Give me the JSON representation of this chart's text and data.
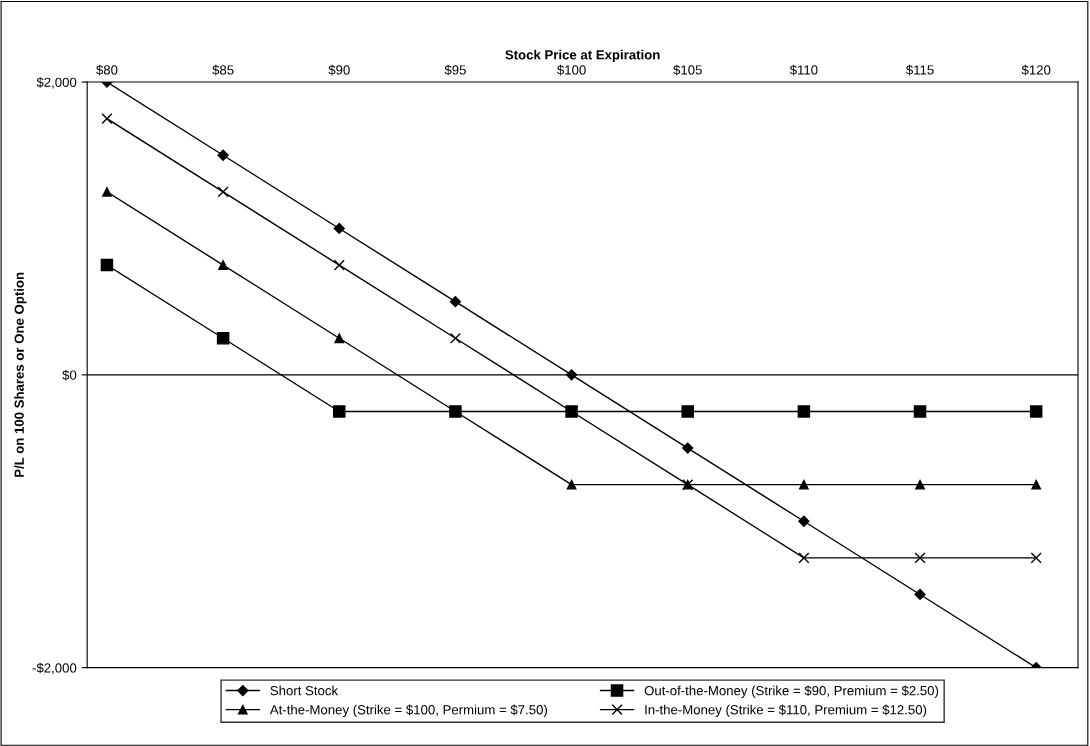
{
  "chart_data": {
    "type": "line",
    "xlabel": "Stock Price at Expiration",
    "ylabel": "P/L on 100 Shares or One Option",
    "categories": [
      "$80",
      "$85",
      "$90",
      "$95",
      "$100",
      "$105",
      "$110",
      "$115",
      "$120"
    ],
    "series": [
      {
        "name": "Short Stock",
        "color": "#000000",
        "marker": "diamond",
        "values": [
          2000,
          1500,
          1000,
          500,
          0,
          -500,
          -1000,
          -1500,
          -2000
        ]
      },
      {
        "name": "Out-of-the-Money (Strike = $90, Premium = $2.50)",
        "color": "#000000",
        "marker": "square",
        "values": [
          750,
          250,
          -250,
          -250,
          -250,
          -250,
          -250,
          -250,
          -250
        ]
      },
      {
        "name": "At-the-Money (Strike = $100, Permium = $7.50)",
        "color": "#000000",
        "marker": "triangle",
        "values": [
          1250,
          750,
          250,
          -250,
          -750,
          -750,
          -750,
          -750,
          -750
        ]
      },
      {
        "name": "In-the-Money (Strike = $110, Premium = $12.50)",
        "color": "#000000",
        "marker": "cross",
        "values": [
          1750,
          1250,
          750,
          250,
          -250,
          -750,
          -1250,
          -1250,
          -1250
        ]
      }
    ],
    "ylim": [
      -2000,
      2000
    ],
    "yticks": [
      {
        "value": -2000,
        "label": "-$2,000"
      },
      {
        "value": 0,
        "label": "$0"
      },
      {
        "value": 2000,
        "label": "$2,000"
      }
    ],
    "ref_lines": [
      {
        "axis": "y",
        "value": 0,
        "color": "#000000"
      }
    ],
    "grid": false,
    "legend": "bottom",
    "line_style": "solid"
  }
}
